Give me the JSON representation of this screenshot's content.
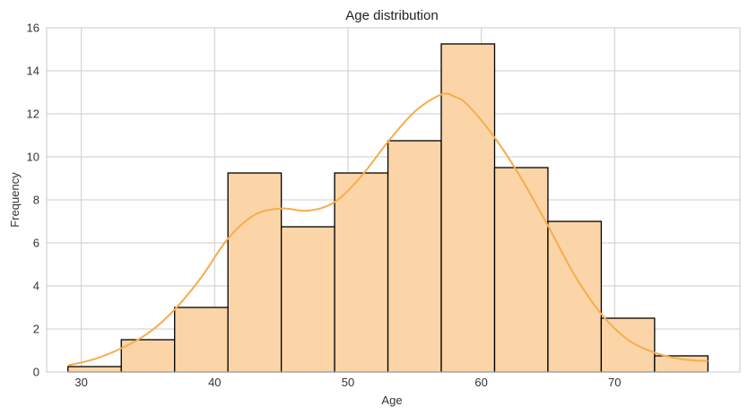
{
  "chart_data": {
    "type": "bar",
    "subtype": "histogram",
    "title": "Age distribution",
    "xlabel": "Age",
    "ylabel": "Frequency",
    "xlim": [
      27.4,
      79.4
    ],
    "ylim": [
      0,
      16
    ],
    "xticks": [
      30,
      40,
      50,
      60,
      70
    ],
    "yticks": [
      0,
      2,
      4,
      6,
      8,
      10,
      12,
      14,
      16
    ],
    "grid": true,
    "bins": [
      {
        "x0": 29.0,
        "x1": 33.0,
        "value": 0.25
      },
      {
        "x0": 33.0,
        "x1": 37.0,
        "value": 1.5
      },
      {
        "x0": 37.0,
        "x1": 41.0,
        "value": 3.0
      },
      {
        "x0": 41.0,
        "x1": 45.0,
        "value": 9.25
      },
      {
        "x0": 45.0,
        "x1": 49.0,
        "value": 6.75
      },
      {
        "x0": 49.0,
        "x1": 53.0,
        "value": 9.25
      },
      {
        "x0": 53.0,
        "x1": 57.0,
        "value": 10.75
      },
      {
        "x0": 57.0,
        "x1": 61.0,
        "value": 15.25
      },
      {
        "x0": 61.0,
        "x1": 65.0,
        "value": 9.5
      },
      {
        "x0": 65.0,
        "x1": 69.0,
        "value": 7.0
      },
      {
        "x0": 69.0,
        "x1": 73.0,
        "value": 2.5
      },
      {
        "x0": 73.0,
        "x1": 77.0,
        "value": 0.75
      }
    ],
    "kde": {
      "x": [
        29,
        31,
        33,
        35,
        37,
        39,
        41,
        43,
        45,
        47,
        49,
        51,
        53,
        55,
        57,
        58,
        59,
        61,
        63,
        65,
        67,
        69,
        71,
        73,
        75,
        77
      ],
      "y": [
        0.3,
        0.6,
        1.1,
        1.8,
        2.9,
        4.4,
        6.2,
        7.3,
        7.6,
        7.5,
        7.9,
        9.1,
        10.7,
        12.1,
        12.9,
        12.8,
        12.4,
        10.9,
        9.0,
        6.8,
        4.5,
        2.7,
        1.5,
        0.9,
        0.6,
        0.5
      ]
    },
    "colors": {
      "bar_fill": "#fbd5a7",
      "bar_edge": "#000000",
      "kde_line": "#f5ad4e",
      "grid": "#cccccc",
      "axes_edge": "#c8c8c8"
    }
  }
}
